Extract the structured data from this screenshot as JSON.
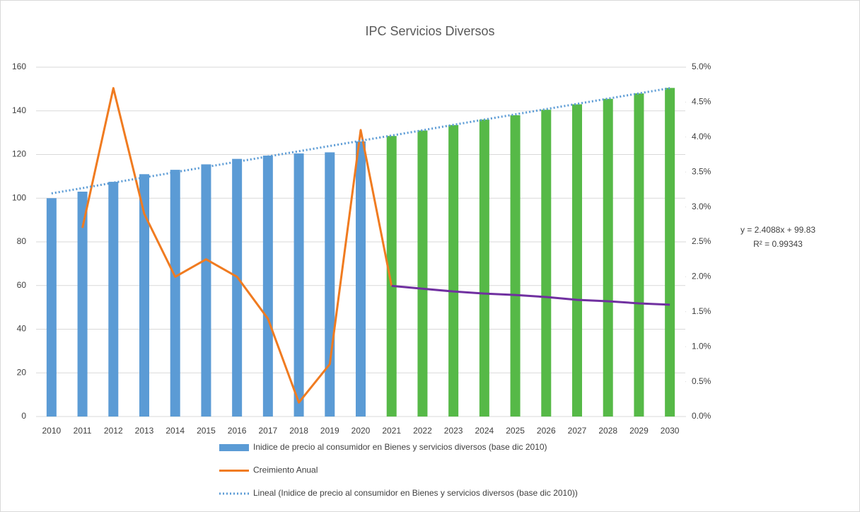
{
  "chart_data": {
    "type": "bar",
    "title": "IPC Servicios  Diversos",
    "categories": [
      "2010",
      "2011",
      "2012",
      "2013",
      "2014",
      "2015",
      "2016",
      "2017",
      "2018",
      "2019",
      "2020",
      "2021",
      "2022",
      "2023",
      "2024",
      "2025",
      "2026",
      "2027",
      "2028",
      "2029",
      "2030"
    ],
    "ylim": [
      0,
      160
    ],
    "yticks": [
      0,
      20,
      40,
      60,
      80,
      100,
      120,
      140,
      160
    ],
    "y2lim": [
      0,
      5
    ],
    "y2ticks": [
      {
        "value": 0,
        "label": "0.0%"
      },
      {
        "value": 0.5,
        "label": "0.5%"
      },
      {
        "value": 1,
        "label": "1.0%"
      },
      {
        "value": 1.5,
        "label": "1.5%"
      },
      {
        "value": 2,
        "label": "2.0%"
      },
      {
        "value": 2.5,
        "label": "2.5%"
      },
      {
        "value": 3,
        "label": "3.0%"
      },
      {
        "value": 3.5,
        "label": "3.5%"
      },
      {
        "value": 4,
        "label": "4.0%"
      },
      {
        "value": 4.5,
        "label": "4.5%"
      },
      {
        "value": 5,
        "label": "5.0%"
      }
    ],
    "grid": true,
    "legend": "bottom",
    "series": [
      {
        "name": "Inidice de precio al consumidor en Bienes y servicios diversos (base dic 2010)",
        "type": "bar",
        "colors": [
          "#5b9bd5",
          "#5b9bd5",
          "#5b9bd5",
          "#5b9bd5",
          "#5b9bd5",
          "#5b9bd5",
          "#5b9bd5",
          "#5b9bd5",
          "#5b9bd5",
          "#5b9bd5",
          "#5b9bd5",
          "#56b947",
          "#56b947",
          "#56b947",
          "#56b947",
          "#56b947",
          "#56b947",
          "#56b947",
          "#56b947",
          "#56b947",
          "#56b947"
        ],
        "values": [
          100,
          103,
          107.5,
          111,
          113,
          115.5,
          118,
          119.5,
          120.5,
          121,
          126,
          128.5,
          131,
          133.5,
          136,
          138,
          140.5,
          143,
          145.5,
          148,
          150.5
        ]
      },
      {
        "name": "Creimiento Anual",
        "type": "line",
        "color": "#f07b20",
        "axis": "y2",
        "values": [
          null,
          2.7,
          4.7,
          2.9,
          2.0,
          2.25,
          2.0,
          1.4,
          0.2,
          0.75,
          4.1,
          1.87,
          null,
          null,
          null,
          null,
          null,
          null,
          null,
          null,
          null
        ]
      },
      {
        "type": "line",
        "color": "#7030a0",
        "axis": "y2",
        "values": [
          null,
          null,
          null,
          null,
          null,
          null,
          null,
          null,
          null,
          null,
          null,
          1.87,
          1.83,
          1.79,
          1.76,
          1.74,
          1.71,
          1.67,
          1.65,
          1.62,
          1.6
        ]
      },
      {
        "name": "Lineal  (Inidice de precio al consumidor en Bienes y servicios diversos (base dic 2010))",
        "type": "line",
        "color": "#5b9bd5",
        "dashed": true,
        "values": [
          102.2,
          104.6,
          107.1,
          109.5,
          111.9,
          114.3,
          116.7,
          119.1,
          121.5,
          123.9,
          126.3,
          128.7,
          131.1,
          133.6,
          136.0,
          138.4,
          140.8,
          143.2,
          145.6,
          148.0,
          150.4
        ]
      }
    ],
    "annotations": [
      "y = 2.4088x + 99.83",
      "R² = 0.99343"
    ]
  }
}
